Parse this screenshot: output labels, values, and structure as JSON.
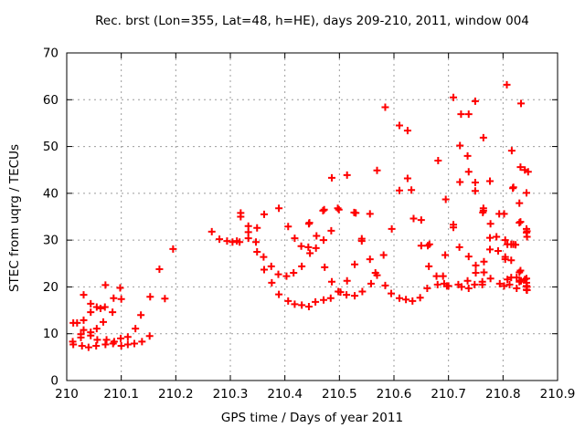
{
  "chart": {
    "title": "Rec. brst (Lon=355, Lat=48, h=HE), days 209-210, 2011, window 004",
    "xlabel": "GPS time / Days of year 2011",
    "ylabel": "STEC from uqrg / TECUs"
  },
  "chart_data": {
    "type": "scatter",
    "title": "Rec. brst (Lon=355, Lat=48, h=HE), days 209-210, 2011, window 004",
    "xlabel": "GPS time / Days of year 2011",
    "ylabel": "STEC from uqrg / TECUs",
    "xlim": [
      210,
      210.9
    ],
    "ylim": [
      0,
      70
    ],
    "xtick_labels": [
      "210",
      "210.1",
      "210.2",
      "210.3",
      "210.4",
      "210.5",
      "210.6",
      "210.7",
      "210.8",
      "210.9"
    ],
    "xticks": [
      210,
      210.1,
      210.2,
      210.3,
      210.4,
      210.5,
      210.6,
      210.7,
      210.8,
      210.9
    ],
    "ytick_labels": [
      "0",
      "10",
      "20",
      "30",
      "40",
      "50",
      "60",
      "70"
    ],
    "yticks": [
      0,
      10,
      20,
      30,
      40,
      50,
      60,
      70
    ],
    "grid": true,
    "legend_position": "none",
    "marker": "plus",
    "marker_color": "#ff0000",
    "grid_color": "#9c9c9c",
    "axis_color": "#000000",
    "points": [
      [
        210.011,
        8.3
      ],
      [
        210.012,
        12.3
      ],
      [
        210.012,
        7.7
      ],
      [
        210.019,
        12.3
      ],
      [
        210.026,
        9.9
      ],
      [
        210.026,
        9.2
      ],
      [
        210.028,
        7.4
      ],
      [
        210.031,
        18.3
      ],
      [
        210.031,
        12.9
      ],
      [
        210.031,
        10.8
      ],
      [
        210.04,
        7.1
      ],
      [
        210.044,
        16.4
      ],
      [
        210.044,
        14.6
      ],
      [
        210.044,
        10.3
      ],
      [
        210.044,
        9.6
      ],
      [
        210.054,
        7.4
      ],
      [
        210.055,
        15.7
      ],
      [
        210.055,
        11.1
      ],
      [
        210.056,
        8.7
      ],
      [
        210.062,
        15.4
      ],
      [
        210.067,
        12.5
      ],
      [
        210.07,
        15.7
      ],
      [
        210.071,
        20.4
      ],
      [
        210.071,
        7.7
      ],
      [
        210.073,
        8.7
      ],
      [
        210.084,
        14.6
      ],
      [
        210.085,
        7.9
      ],
      [
        210.086,
        17.6
      ],
      [
        210.087,
        8.3
      ],
      [
        210.098,
        19.8
      ],
      [
        210.099,
        9.0
      ],
      [
        210.1,
        17.4
      ],
      [
        210.1,
        7.4
      ],
      [
        210.112,
        9.3
      ],
      [
        210.112,
        7.7
      ],
      [
        210.124,
        7.9
      ],
      [
        210.126,
        11.1
      ],
      [
        210.136,
        14.0
      ],
      [
        210.138,
        8.3
      ],
      [
        210.152,
        9.5
      ],
      [
        210.153,
        17.9
      ],
      [
        210.17,
        23.8
      ],
      [
        210.18,
        17.5
      ],
      [
        210.195,
        28.1
      ],
      [
        210.266,
        31.8
      ],
      [
        210.28,
        30.2
      ],
      [
        210.294,
        29.8
      ],
      [
        210.304,
        29.6
      ],
      [
        210.312,
        29.8
      ],
      [
        210.317,
        29.6
      ],
      [
        210.319,
        35.8
      ],
      [
        210.319,
        35.0
      ],
      [
        210.333,
        33.0
      ],
      [
        210.333,
        31.7
      ],
      [
        210.333,
        30.4
      ],
      [
        210.347,
        29.6
      ],
      [
        210.349,
        32.6
      ],
      [
        210.349,
        27.5
      ],
      [
        210.361,
        26.4
      ],
      [
        210.362,
        35.5
      ],
      [
        210.362,
        23.7
      ],
      [
        210.375,
        24.4
      ],
      [
        210.376,
        20.9
      ],
      [
        210.388,
        22.7
      ],
      [
        210.389,
        36.8
      ],
      [
        210.389,
        18.4
      ],
      [
        210.403,
        22.3
      ],
      [
        210.406,
        32.9
      ],
      [
        210.406,
        17.0
      ],
      [
        210.416,
        23.0
      ],
      [
        210.418,
        30.4
      ],
      [
        210.418,
        16.3
      ],
      [
        210.43,
        28.7
      ],
      [
        210.431,
        24.4
      ],
      [
        210.431,
        16.1
      ],
      [
        210.443,
        28.5
      ],
      [
        210.444,
        33.5
      ],
      [
        210.444,
        15.8
      ],
      [
        210.445,
        33.7
      ],
      [
        210.446,
        27.2
      ],
      [
        210.456,
        16.8
      ],
      [
        210.457,
        28.3
      ],
      [
        210.458,
        30.9
      ],
      [
        210.47,
        36.3
      ],
      [
        210.471,
        30.0
      ],
      [
        210.471,
        17.2
      ],
      [
        210.472,
        36.5
      ],
      [
        210.473,
        24.2
      ],
      [
        210.484,
        17.6
      ],
      [
        210.485,
        32.0
      ],
      [
        210.486,
        43.3
      ],
      [
        210.486,
        21.1
      ],
      [
        210.497,
        36.8
      ],
      [
        210.499,
        36.5
      ],
      [
        210.498,
        19.0
      ],
      [
        210.502,
        18.9
      ],
      [
        210.513,
        18.3
      ],
      [
        210.514,
        43.9
      ],
      [
        210.514,
        21.3
      ],
      [
        210.527,
        35.9
      ],
      [
        210.528,
        24.8
      ],
      [
        210.528,
        18.1
      ],
      [
        210.53,
        35.8
      ],
      [
        210.541,
        30.3
      ],
      [
        210.541,
        29.8
      ],
      [
        210.542,
        19.0
      ],
      [
        210.556,
        35.6
      ],
      [
        210.556,
        25.9
      ],
      [
        210.558,
        20.7
      ],
      [
        210.566,
        23.0
      ],
      [
        210.569,
        44.9
      ],
      [
        210.569,
        22.5
      ],
      [
        210.581,
        26.8
      ],
      [
        210.584,
        58.4
      ],
      [
        210.584,
        20.3
      ],
      [
        210.595,
        18.6
      ],
      [
        210.596,
        32.4
      ],
      [
        210.61,
        54.5
      ],
      [
        210.61,
        40.6
      ],
      [
        210.61,
        17.6
      ],
      [
        210.622,
        17.3
      ],
      [
        210.625,
        53.4
      ],
      [
        210.625,
        43.2
      ],
      [
        210.632,
        40.7
      ],
      [
        210.634,
        17.0
      ],
      [
        210.636,
        34.6
      ],
      [
        210.648,
        17.7
      ],
      [
        210.65,
        34.3
      ],
      [
        210.65,
        28.8
      ],
      [
        210.661,
        19.7
      ],
      [
        210.662,
        28.8
      ],
      [
        210.664,
        24.4
      ],
      [
        210.665,
        29.1
      ],
      [
        210.678,
        22.3
      ],
      [
        210.68,
        20.5
      ],
      [
        210.681,
        47.0
      ],
      [
        210.69,
        22.3
      ],
      [
        210.692,
        20.7
      ],
      [
        210.694,
        26.8
      ],
      [
        210.695,
        38.7
      ],
      [
        210.697,
        20.2
      ],
      [
        210.7,
        20.2
      ],
      [
        210.709,
        60.5
      ],
      [
        210.709,
        33.3
      ],
      [
        210.709,
        32.7
      ],
      [
        210.718,
        20.5
      ],
      [
        210.72,
        28.5
      ],
      [
        210.721,
        50.2
      ],
      [
        210.721,
        42.4
      ],
      [
        210.723,
        56.9
      ],
      [
        210.724,
        20.0
      ],
      [
        210.735,
        48.0
      ],
      [
        210.735,
        21.3
      ],
      [
        210.737,
        56.9
      ],
      [
        210.737,
        44.6
      ],
      [
        210.737,
        26.5
      ],
      [
        210.737,
        19.7
      ],
      [
        210.748,
        20.5
      ],
      [
        210.749,
        59.7
      ],
      [
        210.749,
        42.3
      ],
      [
        210.749,
        40.5
      ],
      [
        210.75,
        24.6
      ],
      [
        210.75,
        23.0
      ],
      [
        210.762,
        21.1
      ],
      [
        210.762,
        20.5
      ],
      [
        210.763,
        35.9
      ],
      [
        210.764,
        51.9
      ],
      [
        210.764,
        36.8
      ],
      [
        210.764,
        36.3
      ],
      [
        210.765,
        25.4
      ],
      [
        210.765,
        23.1
      ],
      [
        210.776,
        42.6
      ],
      [
        210.776,
        30.5
      ],
      [
        210.776,
        28.0
      ],
      [
        210.777,
        33.5
      ],
      [
        210.777,
        21.8
      ],
      [
        210.788,
        30.7
      ],
      [
        210.791,
        27.7
      ],
      [
        210.793,
        35.6
      ],
      [
        210.794,
        20.7
      ],
      [
        210.802,
        35.6
      ],
      [
        210.802,
        20.2
      ],
      [
        210.804,
        30.0
      ],
      [
        210.804,
        26.4
      ],
      [
        210.804,
        25.9
      ],
      [
        210.807,
        63.2
      ],
      [
        210.808,
        29.1
      ],
      [
        210.808,
        21.6
      ],
      [
        210.812,
        20.5
      ],
      [
        210.815,
        29.1
      ],
      [
        210.815,
        25.7
      ],
      [
        210.815,
        22.0
      ],
      [
        210.816,
        49.1
      ],
      [
        210.818,
        41.1
      ],
      [
        210.819,
        41.3
      ],
      [
        210.819,
        29.1
      ],
      [
        210.823,
        29.0
      ],
      [
        210.825,
        22.0
      ],
      [
        210.825,
        19.7
      ],
      [
        210.83,
        37.9
      ],
      [
        210.83,
        33.7
      ],
      [
        210.83,
        23.1
      ],
      [
        210.83,
        21.1
      ],
      [
        210.832,
        45.6
      ],
      [
        210.832,
        33.9
      ],
      [
        210.832,
        23.5
      ],
      [
        210.832,
        21.3
      ],
      [
        210.833,
        59.2
      ],
      [
        210.833,
        21.3
      ],
      [
        210.84,
        45.0
      ],
      [
        210.84,
        21.6
      ],
      [
        210.843,
        40.1
      ],
      [
        210.843,
        32.4
      ],
      [
        210.843,
        31.6
      ],
      [
        210.843,
        21.8
      ],
      [
        210.843,
        20.9
      ],
      [
        210.843,
        20.2
      ],
      [
        210.843,
        19.4
      ],
      [
        210.844,
        31.9
      ],
      [
        210.844,
        30.7
      ],
      [
        210.844,
        20.0
      ],
      [
        210.844,
        19.3
      ],
      [
        210.846,
        44.6
      ]
    ]
  },
  "layout_hints": {
    "tick_style": "inward on all four borders",
    "grid_style": "dotted"
  }
}
